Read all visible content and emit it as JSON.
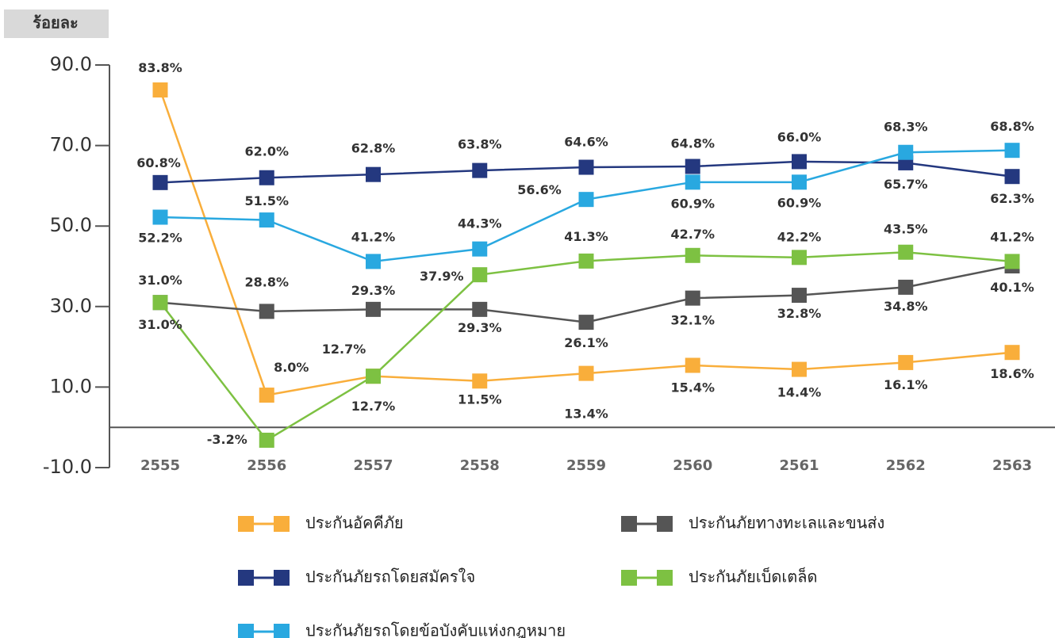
{
  "chart_data": {
    "type": "line",
    "ylabel": "ร้อยละ",
    "categories": [
      "2555",
      "2556",
      "2557",
      "2558",
      "2559",
      "2560",
      "2561",
      "2562",
      "2563"
    ],
    "ylim": [
      -10,
      90
    ],
    "yticks": [
      {
        "value": 90,
        "label": "90.0"
      },
      {
        "value": 70,
        "label": "70.0"
      },
      {
        "value": 50,
        "label": "50.0"
      },
      {
        "value": 30,
        "label": "30.0"
      },
      {
        "value": 10,
        "label": "10.0"
      },
      {
        "value": -10,
        "label": "-10.0"
      }
    ],
    "series": [
      {
        "name": "ประกันอัคคีภัย",
        "color": "#f9ae3b",
        "values": [
          83.8,
          8.0,
          12.7,
          11.5,
          13.4,
          15.4,
          14.4,
          16.1,
          18.6
        ],
        "value_labels": [
          "83.8%",
          "8.0%",
          "12.7%",
          "11.5%",
          "13.4%",
          "15.4%",
          "14.4%",
          "16.1%",
          "18.6%"
        ]
      },
      {
        "name": "ประกันภัยรถโดยสมัครใจ",
        "color": "#24387f",
        "values": [
          60.8,
          62.0,
          62.8,
          63.8,
          64.6,
          64.8,
          66.0,
          65.7,
          62.3
        ],
        "value_labels": [
          "60.8%",
          "62.0%",
          "62.8%",
          "63.8%",
          "64.6%",
          "64.8%",
          "66.0%",
          "65.7%",
          "62.3%"
        ]
      },
      {
        "name": "ประกันภัยรถโดยข้อบังคับแห่งกฎหมาย",
        "color": "#29a8e0",
        "values": [
          52.2,
          51.5,
          41.2,
          44.3,
          56.6,
          60.9,
          60.9,
          68.3,
          68.8
        ],
        "value_labels": [
          "52.2%",
          "51.5%",
          "41.2%",
          "44.3%",
          "56.6%",
          "60.9%",
          "60.9%",
          "68.3%",
          "68.8%"
        ]
      },
      {
        "name": "ประกันภัยทางทะเลและขนส่ง",
        "color": "#555555",
        "values": [
          31.0,
          28.8,
          29.3,
          29.3,
          26.1,
          32.1,
          32.8,
          34.8,
          40.1
        ],
        "value_labels": [
          "31.0%",
          "28.8%",
          "29.3%",
          "29.3%",
          "26.1%",
          "32.1%",
          "32.8%",
          "34.8%",
          "40.1%"
        ]
      },
      {
        "name": "ประกันภัยเบ็ดเตล็ด",
        "color": "#7dc142",
        "values": [
          31.0,
          -3.2,
          12.7,
          37.9,
          41.3,
          42.7,
          42.2,
          43.5,
          41.2
        ],
        "value_labels": [
          "31.0%",
          "-3.2%",
          "12.7%",
          "37.9%",
          "41.3%",
          "42.7%",
          "42.2%",
          "43.5%",
          "41.2%"
        ]
      }
    ]
  }
}
